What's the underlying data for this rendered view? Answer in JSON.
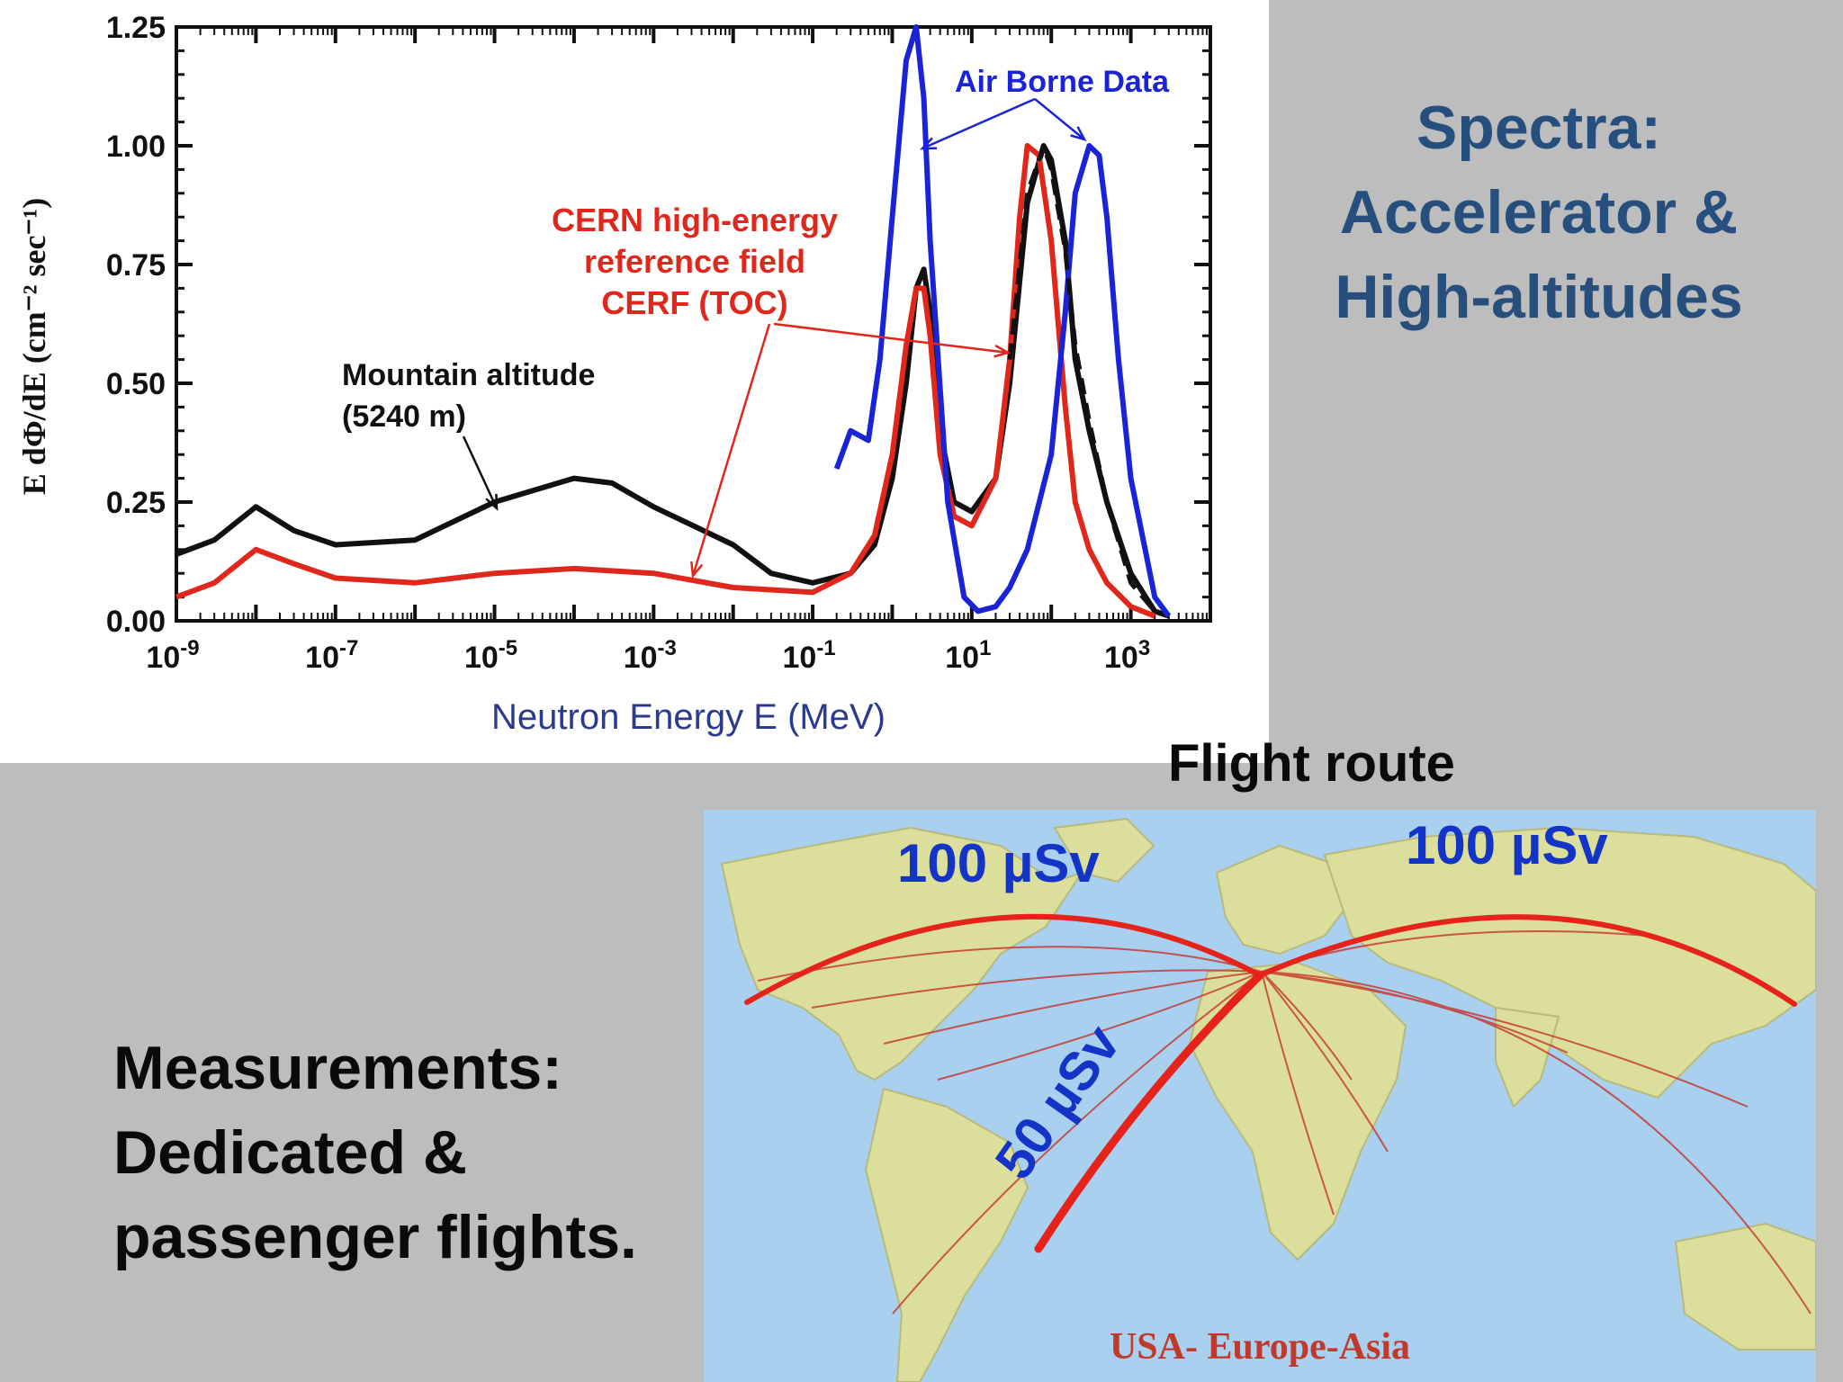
{
  "slide": {
    "side_title_lines": [
      "Spectra:",
      "Accelerator &",
      "High-altitudes"
    ],
    "measurements_lines": [
      "Measurements:",
      "Dedicated &",
      "passenger flights."
    ],
    "flight_route_title": "Flight route"
  },
  "map": {
    "dose_labels": [
      "100 µSv",
      "100 µSv",
      "50 µSv"
    ],
    "caption": "USA- Europe-Asia",
    "colors": {
      "ocean": "#a9d0ee",
      "land": "#dcdf9b",
      "route": "#e5231b",
      "dose_text": "#1434c8",
      "caption": "#c0392b"
    }
  },
  "chart_data": {
    "type": "line",
    "xlabel": "Neutron Energy E (MeV)",
    "ylabel": "E dΦ/dE (cm⁻² sec⁻¹)",
    "x_scale": "log",
    "xlim": [
      1e-09,
      10000
    ],
    "ylim": [
      0,
      1.25
    ],
    "y_ticks": [
      "0.00",
      "0.25",
      "0.50",
      "0.75",
      "1.00",
      "1.25"
    ],
    "x_tick_exponents": [
      "-9",
      "-7",
      "-5",
      "-3",
      "-1",
      "1",
      "3"
    ],
    "grid": false,
    "series": [
      {
        "name": "Mountain altitude (5240 m)",
        "color": "#111111",
        "style": "solid",
        "x": [
          1e-09,
          3e-09,
          1e-08,
          3e-08,
          1e-07,
          1e-06,
          1e-05,
          0.0001,
          0.0003,
          0.001,
          0.01,
          0.03,
          0.1,
          0.3,
          0.6,
          1,
          1.5,
          2,
          2.5,
          3,
          4,
          6,
          10,
          20,
          30,
          50,
          80,
          100,
          150,
          200,
          300,
          500,
          1000,
          2000,
          3000
        ],
        "y": [
          0.14,
          0.17,
          0.24,
          0.19,
          0.16,
          0.17,
          0.25,
          0.3,
          0.29,
          0.24,
          0.16,
          0.1,
          0.08,
          0.1,
          0.16,
          0.3,
          0.5,
          0.7,
          0.74,
          0.65,
          0.4,
          0.25,
          0.23,
          0.3,
          0.5,
          0.88,
          1.0,
          0.97,
          0.8,
          0.55,
          0.4,
          0.25,
          0.1,
          0.02,
          0.01
        ]
      },
      {
        "name": "CERN high-energy reference field CERF (TOC)",
        "color": "#e0271c",
        "style": "solid",
        "x": [
          1e-09,
          3e-09,
          1e-08,
          3e-08,
          1e-07,
          1e-06,
          1e-05,
          0.0001,
          0.001,
          0.01,
          0.1,
          0.3,
          0.6,
          1,
          1.5,
          2,
          2.5,
          3,
          4,
          6,
          10,
          20,
          30,
          40,
          50,
          70,
          100,
          150,
          200,
          300,
          500,
          1000,
          2000
        ],
        "y": [
          0.05,
          0.08,
          0.15,
          0.12,
          0.09,
          0.08,
          0.1,
          0.11,
          0.1,
          0.07,
          0.06,
          0.1,
          0.18,
          0.35,
          0.58,
          0.7,
          0.7,
          0.6,
          0.35,
          0.22,
          0.2,
          0.3,
          0.55,
          0.85,
          1.0,
          0.98,
          0.8,
          0.45,
          0.25,
          0.15,
          0.08,
          0.03,
          0.01
        ]
      },
      {
        "name": "Air Borne Data",
        "color": "#1a24d6",
        "style": "solid",
        "x": [
          0.2,
          0.3,
          0.5,
          0.7,
          1,
          1.5,
          2,
          2.5,
          3,
          5,
          8,
          12,
          20,
          30,
          50,
          100,
          150,
          200,
          300,
          400,
          500,
          700,
          1000,
          2000,
          3000
        ],
        "y": [
          0.32,
          0.4,
          0.38,
          0.55,
          0.85,
          1.18,
          1.25,
          1.1,
          0.8,
          0.25,
          0.05,
          0.02,
          0.03,
          0.07,
          0.15,
          0.35,
          0.65,
          0.9,
          1.0,
          0.98,
          0.85,
          0.55,
          0.3,
          0.05,
          0.01
        ]
      },
      {
        "name": "",
        "color": "#111111",
        "style": "dashed",
        "x": [
          30,
          50,
          80,
          100,
          150,
          200,
          300,
          500,
          1000,
          2000
        ],
        "y": [
          0.55,
          0.9,
          1.0,
          0.95,
          0.78,
          0.58,
          0.42,
          0.25,
          0.08,
          0.02
        ]
      }
    ],
    "annotations": [
      {
        "label_lines": [
          "Air Borne Data"
        ],
        "color": "#1a24d6"
      },
      {
        "label_lines": [
          "CERN high-energy",
          "reference field",
          "CERF (TOC)"
        ],
        "color": "#e0271c"
      },
      {
        "label_lines": [
          "Mountain altitude",
          "(5240 m)"
        ],
        "color": "#111111"
      }
    ]
  }
}
